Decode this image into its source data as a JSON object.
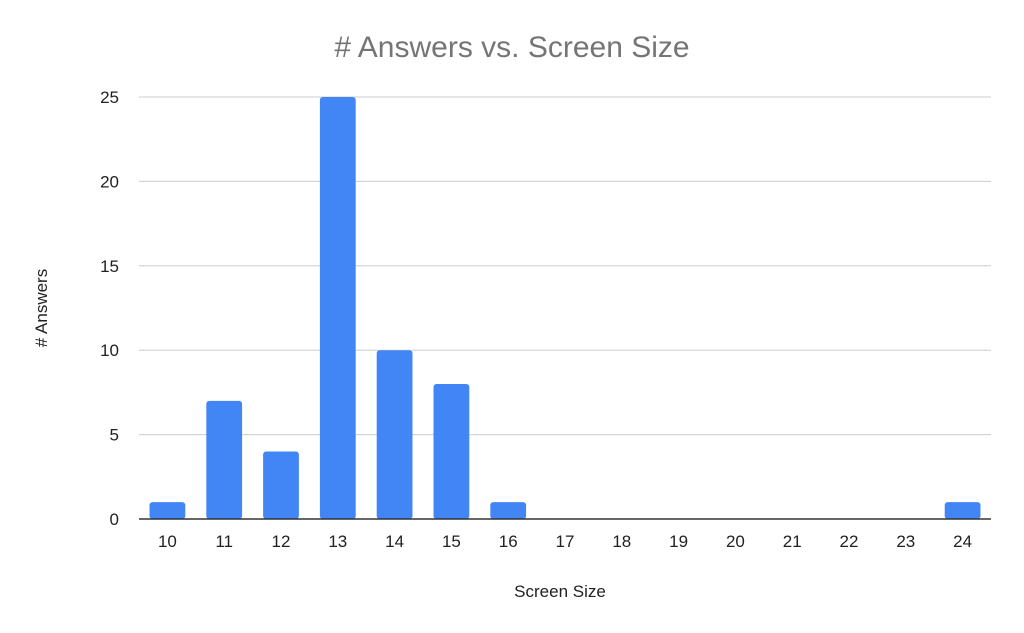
{
  "chart_data": {
    "type": "bar",
    "title": "# Answers vs. Screen Size",
    "xlabel": "Screen Size",
    "ylabel": "# Answers",
    "categories": [
      "10",
      "11",
      "12",
      "13",
      "14",
      "15",
      "16",
      "17",
      "18",
      "19",
      "20",
      "21",
      "22",
      "23",
      "24"
    ],
    "values": [
      1,
      7,
      4,
      25,
      10,
      8,
      1,
      0,
      0,
      0,
      0,
      0,
      0,
      0,
      1
    ],
    "ylim": [
      0,
      25
    ],
    "yticks": [
      0,
      5,
      10,
      15,
      20,
      25
    ],
    "grid": true,
    "legend": "none",
    "colors": {
      "bar": "#4285f4",
      "grid": "#cccccc",
      "axis": "#333333",
      "title": "#757575"
    }
  }
}
